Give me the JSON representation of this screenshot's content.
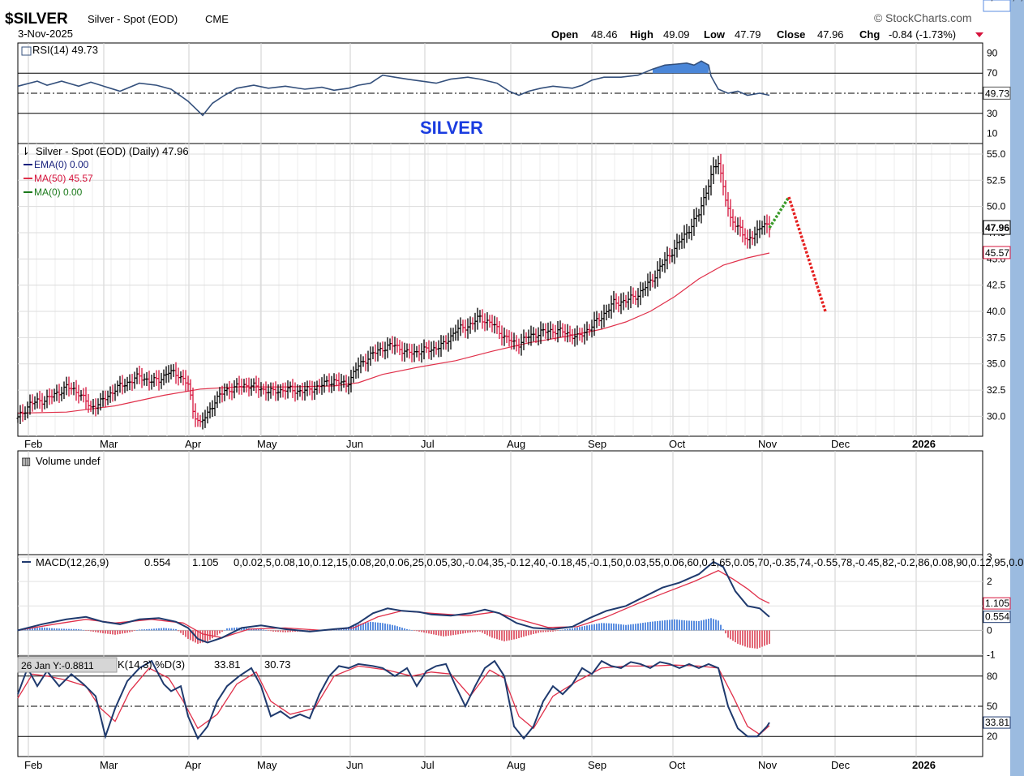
{
  "header": {
    "ticker": "$SILVER",
    "name": "Silver - Spot (EOD)",
    "exchange": "CME",
    "date": "3-Nov-2025",
    "brand": "StockCharts.com",
    "ohlc": {
      "open_label": "Open",
      "open": "48.46",
      "high_label": "High",
      "high": "49.09",
      "low_label": "Low",
      "low": "47.79",
      "close_label": "Close",
      "close": "47.96",
      "chg_label": "Chg",
      "chg": "-0.84 (-1.73%)"
    }
  },
  "overlay_title": "SILVER",
  "colors": {
    "price_up": "#000000",
    "price_down": "#d6133c",
    "ma50": "#e0304a",
    "ema": "#1a237e",
    "ma0": "#1b7a1b",
    "rsi_line": "#34507c",
    "rsi_fill": "#4a86d8",
    "macd_line": "#1f3a6e",
    "signal_line": "#e0304a",
    "hist_pos": "#5b8ee0",
    "hist_neg": "#e26877",
    "forecast_up": "#3a9a2a",
    "forecast_down": "#e52020",
    "panel_bg": "#ffffff",
    "grid": "#d8d8d8"
  },
  "months": [
    "Feb",
    "Mar",
    "Apr",
    "May",
    "Jun",
    "Jul",
    "Aug",
    "Sep",
    "Oct",
    "Nov",
    "Dec",
    "2026"
  ],
  "rsi": {
    "label": "RSI(14) 49.73",
    "value": "49.73",
    "ticks": [
      "90",
      "70",
      "30",
      "10"
    ],
    "levels": [
      70,
      50,
      30
    ],
    "points": [
      [
        0,
        57
      ],
      [
        8,
        62
      ],
      [
        12,
        58
      ],
      [
        18,
        62
      ],
      [
        25,
        57
      ],
      [
        30,
        61
      ],
      [
        38,
        55
      ],
      [
        42,
        52
      ],
      [
        50,
        60
      ],
      [
        57,
        58
      ],
      [
        63,
        54
      ],
      [
        70,
        42
      ],
      [
        73,
        35
      ],
      [
        76,
        28
      ],
      [
        80,
        40
      ],
      [
        85,
        48
      ],
      [
        90,
        55
      ],
      [
        97,
        58
      ],
      [
        103,
        55
      ],
      [
        110,
        57
      ],
      [
        118,
        54
      ],
      [
        125,
        56
      ],
      [
        130,
        53
      ],
      [
        136,
        55
      ],
      [
        140,
        58
      ],
      [
        145,
        60
      ],
      [
        150,
        68
      ],
      [
        155,
        66
      ],
      [
        160,
        64
      ],
      [
        166,
        62
      ],
      [
        172,
        60
      ],
      [
        178,
        64
      ],
      [
        185,
        66
      ],
      [
        190,
        64
      ],
      [
        197,
        60
      ],
      [
        202,
        52
      ],
      [
        206,
        48
      ],
      [
        210,
        52
      ],
      [
        215,
        55
      ],
      [
        220,
        57
      ],
      [
        228,
        55
      ],
      [
        232,
        58
      ],
      [
        236,
        63
      ],
      [
        241,
        66
      ],
      [
        248,
        66
      ],
      [
        255,
        68
      ],
      [
        261,
        74
      ],
      [
        266,
        78
      ],
      [
        271,
        79
      ],
      [
        275,
        80
      ],
      [
        278,
        78
      ],
      [
        281,
        82
      ],
      [
        284,
        78
      ],
      [
        285,
        67
      ],
      [
        288,
        54
      ],
      [
        292,
        50
      ],
      [
        296,
        52
      ],
      [
        300,
        48
      ],
      [
        305,
        50
      ],
      [
        309,
        48
      ]
    ],
    "ylim": [
      0,
      100
    ]
  },
  "price": {
    "label": "Silver - Spot (EOD) (Daily) 47.96",
    "ema_label": "EMA(0) 0.00",
    "ma50_label": "MA(50) 45.57",
    "ma0_label": "MA(0) 0.00",
    "last": "47.96",
    "ma50_last": "45.57",
    "ticks": [
      "55.0",
      "52.5",
      "50.0",
      "47.5",
      "45.0",
      "42.5",
      "40.0",
      "37.5",
      "35.0",
      "32.5",
      "30.0"
    ],
    "ylim": [
      28.1,
      56.0
    ],
    "closes": [
      [
        0,
        29.8
      ],
      [
        5,
        31.2
      ],
      [
        10,
        31.5
      ],
      [
        15,
        32.0
      ],
      [
        20,
        32.8
      ],
      [
        25,
        32.3
      ],
      [
        30,
        30.8
      ],
      [
        35,
        31.5
      ],
      [
        40,
        32.6
      ],
      [
        45,
        33.2
      ],
      [
        50,
        33.8
      ],
      [
        55,
        33.3
      ],
      [
        58,
        33.5
      ],
      [
        62,
        34.2
      ],
      [
        66,
        34.0
      ],
      [
        70,
        33.0
      ],
      [
        72,
        30.5
      ],
      [
        75,
        29.3
      ],
      [
        78,
        30.2
      ],
      [
        81,
        31.5
      ],
      [
        85,
        32.4
      ],
      [
        90,
        32.8
      ],
      [
        95,
        33.0
      ],
      [
        100,
        32.6
      ],
      [
        105,
        32.3
      ],
      [
        110,
        32.6
      ],
      [
        115,
        32.4
      ],
      [
        120,
        32.5
      ],
      [
        125,
        33.0
      ],
      [
        130,
        33.4
      ],
      [
        135,
        33.0
      ],
      [
        140,
        34.8
      ],
      [
        145,
        35.8
      ],
      [
        150,
        36.5
      ],
      [
        155,
        36.8
      ],
      [
        160,
        36.0
      ],
      [
        165,
        36.2
      ],
      [
        170,
        36.4
      ],
      [
        175,
        36.8
      ],
      [
        180,
        38.2
      ],
      [
        185,
        38.6
      ],
      [
        190,
        39.4
      ],
      [
        195,
        38.8
      ],
      [
        200,
        37.6
      ],
      [
        205,
        36.8
      ],
      [
        210,
        37.6
      ],
      [
        215,
        38.0
      ],
      [
        220,
        38.2
      ],
      [
        225,
        38.0
      ],
      [
        230,
        37.5
      ],
      [
        235,
        38.4
      ],
      [
        240,
        39.5
      ],
      [
        245,
        40.8
      ],
      [
        250,
        41.0
      ],
      [
        255,
        41.6
      ],
      [
        260,
        42.8
      ],
      [
        265,
        44.5
      ],
      [
        270,
        46.0
      ],
      [
        275,
        47.5
      ],
      [
        280,
        49.3
      ],
      [
        283,
        51.5
      ],
      [
        286,
        53.5
      ],
      [
        288,
        54.2
      ],
      [
        290,
        52.0
      ],
      [
        293,
        48.6
      ],
      [
        297,
        48.0
      ],
      [
        300,
        46.5
      ],
      [
        303,
        47.5
      ],
      [
        306,
        48.2
      ],
      [
        309,
        47.96
      ]
    ],
    "ma50": [
      [
        0,
        30.3
      ],
      [
        20,
        30.4
      ],
      [
        40,
        31.0
      ],
      [
        60,
        32.0
      ],
      [
        75,
        32.6
      ],
      [
        90,
        32.8
      ],
      [
        110,
        32.8
      ],
      [
        130,
        32.9
      ],
      [
        140,
        33.2
      ],
      [
        150,
        34.0
      ],
      [
        165,
        34.7
      ],
      [
        180,
        35.3
      ],
      [
        195,
        36.2
      ],
      [
        210,
        37.0
      ],
      [
        225,
        37.6
      ],
      [
        240,
        38.3
      ],
      [
        250,
        39.0
      ],
      [
        260,
        40.0
      ],
      [
        270,
        41.4
      ],
      [
        280,
        43.1
      ],
      [
        290,
        44.4
      ],
      [
        300,
        45.1
      ],
      [
        309,
        45.57
      ]
    ],
    "forecast_up": [
      [
        309,
        47.96
      ],
      [
        317,
        50.9
      ]
    ],
    "forecast_down": [
      [
        317,
        50.9
      ],
      [
        332,
        40.0
      ]
    ]
  },
  "volume": {
    "label": "Volume undef"
  },
  "macd": {
    "label_prefix": "MACD(12,26,9)",
    "macd": "0.554",
    "signal": "1.105",
    "hist": [
      [
        0,
        0.02
      ],
      [
        5,
        0.08
      ],
      [
        10,
        0.12
      ],
      [
        15,
        0.08
      ],
      [
        20,
        0.06
      ],
      [
        25,
        0.05
      ],
      [
        30,
        -0.04
      ],
      [
        35,
        -0.12
      ],
      [
        40,
        -0.18
      ],
      [
        45,
        -0.1
      ],
      [
        50,
        0.03
      ],
      [
        55,
        0.06
      ],
      [
        60,
        0.1
      ],
      [
        65,
        0.05
      ],
      [
        70,
        -0.35
      ],
      [
        74,
        -0.55
      ],
      [
        78,
        -0.45
      ],
      [
        82,
        -0.2
      ],
      [
        86,
        0.08
      ],
      [
        90,
        0.12
      ],
      [
        95,
        0.08
      ],
      [
        100,
        0.05
      ],
      [
        105,
        -0.05
      ],
      [
        110,
        -0.08
      ],
      [
        115,
        -0.05
      ],
      [
        120,
        -0.03
      ],
      [
        125,
        0.0
      ],
      [
        130,
        0.06
      ],
      [
        135,
        0.12
      ],
      [
        140,
        0.25
      ],
      [
        145,
        0.35
      ],
      [
        150,
        0.3
      ],
      [
        155,
        0.2
      ],
      [
        160,
        0.05
      ],
      [
        165,
        -0.05
      ],
      [
        170,
        -0.15
      ],
      [
        175,
        -0.25
      ],
      [
        180,
        -0.18
      ],
      [
        185,
        -0.1
      ],
      [
        190,
        -0.05
      ],
      [
        195,
        -0.3
      ],
      [
        200,
        -0.45
      ],
      [
        205,
        -0.35
      ],
      [
        210,
        -0.2
      ],
      [
        215,
        -0.08
      ],
      [
        220,
        -0.05
      ],
      [
        225,
        0.04
      ],
      [
        230,
        0.12
      ],
      [
        235,
        0.22
      ],
      [
        240,
        0.3
      ],
      [
        245,
        0.28
      ],
      [
        250,
        0.22
      ],
      [
        255,
        0.28
      ],
      [
        260,
        0.35
      ],
      [
        265,
        0.4
      ],
      [
        270,
        0.45
      ],
      [
        275,
        0.4
      ],
      [
        280,
        0.38
      ],
      [
        285,
        0.5
      ],
      [
        288,
        0.4
      ],
      [
        292,
        -0.3
      ],
      [
        296,
        -0.55
      ],
      [
        300,
        -0.7
      ],
      [
        304,
        -0.75
      ],
      [
        309,
        -0.552
      ]
    ],
    "ticks": [
      "3",
      "2",
      "1",
      "0",
      "-1"
    ],
    "ylim": [
      -1.05,
      3.1
    ],
    "macd_line": [
      [
        0,
        0.0
      ],
      [
        10,
        0.25
      ],
      [
        20,
        0.45
      ],
      [
        28,
        0.55
      ],
      [
        35,
        0.35
      ],
      [
        42,
        0.25
      ],
      [
        50,
        0.45
      ],
      [
        58,
        0.5
      ],
      [
        65,
        0.35
      ],
      [
        70,
        0.1
      ],
      [
        74,
        -0.35
      ],
      [
        78,
        -0.5
      ],
      [
        84,
        -0.3
      ],
      [
        92,
        0.1
      ],
      [
        100,
        0.2
      ],
      [
        110,
        0.05
      ],
      [
        120,
        -0.05
      ],
      [
        130,
        0.05
      ],
      [
        136,
        0.1
      ],
      [
        140,
        0.3
      ],
      [
        146,
        0.7
      ],
      [
        152,
        0.9
      ],
      [
        158,
        0.8
      ],
      [
        165,
        0.75
      ],
      [
        170,
        0.65
      ],
      [
        178,
        0.6
      ],
      [
        186,
        0.7
      ],
      [
        192,
        0.85
      ],
      [
        198,
        0.7
      ],
      [
        205,
        0.3
      ],
      [
        212,
        0.1
      ],
      [
        220,
        0.05
      ],
      [
        228,
        0.15
      ],
      [
        235,
        0.5
      ],
      [
        242,
        0.8
      ],
      [
        250,
        1.0
      ],
      [
        258,
        1.4
      ],
      [
        265,
        1.75
      ],
      [
        272,
        1.95
      ],
      [
        280,
        2.3
      ],
      [
        286,
        2.8
      ],
      [
        290,
        2.6
      ],
      [
        295,
        1.6
      ],
      [
        300,
        1.0
      ],
      [
        305,
        0.9
      ],
      [
        309,
        0.554
      ]
    ],
    "signal_line": [
      [
        0,
        0.0
      ],
      [
        15,
        0.25
      ],
      [
        28,
        0.45
      ],
      [
        40,
        0.3
      ],
      [
        55,
        0.45
      ],
      [
        68,
        0.3
      ],
      [
        76,
        -0.15
      ],
      [
        84,
        -0.3
      ],
      [
        95,
        0.05
      ],
      [
        110,
        0.1
      ],
      [
        125,
        0.0
      ],
      [
        138,
        0.1
      ],
      [
        148,
        0.55
      ],
      [
        158,
        0.8
      ],
      [
        170,
        0.7
      ],
      [
        185,
        0.6
      ],
      [
        196,
        0.75
      ],
      [
        206,
        0.45
      ],
      [
        218,
        0.12
      ],
      [
        230,
        0.15
      ],
      [
        242,
        0.55
      ],
      [
        255,
        1.1
      ],
      [
        265,
        1.5
      ],
      [
        278,
        2.0
      ],
      [
        288,
        2.45
      ],
      [
        294,
        2.1
      ],
      [
        300,
        1.7
      ],
      [
        305,
        1.3
      ],
      [
        309,
        1.105
      ]
    ]
  },
  "stoch": {
    "tooltip": "26 Jan Y:-0.8811",
    "label_suffix": "K(14,3) %D(3)",
    "k": "33.81",
    "d": "30.73",
    "ticks": [
      "80",
      "50",
      "20"
    ],
    "levels": [
      80,
      50,
      20
    ],
    "ylim": [
      0,
      100
    ],
    "k_line": [
      [
        0,
        62
      ],
      [
        4,
        88
      ],
      [
        8,
        70
      ],
      [
        12,
        85
      ],
      [
        17,
        70
      ],
      [
        22,
        82
      ],
      [
        27,
        72
      ],
      [
        32,
        60
      ],
      [
        36,
        20
      ],
      [
        40,
        48
      ],
      [
        45,
        75
      ],
      [
        50,
        88
      ],
      [
        55,
        95
      ],
      [
        60,
        72
      ],
      [
        63,
        65
      ],
      [
        67,
        70
      ],
      [
        70,
        40
      ],
      [
        74,
        18
      ],
      [
        78,
        30
      ],
      [
        82,
        55
      ],
      [
        86,
        70
      ],
      [
        91,
        80
      ],
      [
        96,
        88
      ],
      [
        100,
        70
      ],
      [
        104,
        40
      ],
      [
        108,
        45
      ],
      [
        112,
        38
      ],
      [
        116,
        42
      ],
      [
        120,
        38
      ],
      [
        124,
        62
      ],
      [
        128,
        80
      ],
      [
        132,
        90
      ],
      [
        136,
        88
      ],
      [
        140,
        92
      ],
      [
        146,
        90
      ],
      [
        150,
        88
      ],
      [
        155,
        80
      ],
      [
        160,
        88
      ],
      [
        164,
        70
      ],
      [
        168,
        85
      ],
      [
        172,
        90
      ],
      [
        176,
        92
      ],
      [
        180,
        70
      ],
      [
        184,
        50
      ],
      [
        188,
        70
      ],
      [
        192,
        88
      ],
      [
        196,
        95
      ],
      [
        200,
        80
      ],
      [
        204,
        30
      ],
      [
        208,
        18
      ],
      [
        212,
        30
      ],
      [
        216,
        55
      ],
      [
        220,
        70
      ],
      [
        224,
        62
      ],
      [
        228,
        72
      ],
      [
        232,
        88
      ],
      [
        236,
        82
      ],
      [
        240,
        95
      ],
      [
        244,
        90
      ],
      [
        248,
        88
      ],
      [
        252,
        94
      ],
      [
        256,
        92
      ],
      [
        260,
        88
      ],
      [
        264,
        94
      ],
      [
        268,
        92
      ],
      [
        272,
        88
      ],
      [
        276,
        92
      ],
      [
        280,
        88
      ],
      [
        284,
        92
      ],
      [
        288,
        88
      ],
      [
        292,
        50
      ],
      [
        296,
        28
      ],
      [
        300,
        20
      ],
      [
        304,
        20
      ],
      [
        308,
        30
      ],
      [
        309,
        33.81
      ]
    ],
    "d_line": [
      [
        0,
        58
      ],
      [
        6,
        82
      ],
      [
        12,
        80
      ],
      [
        20,
        76
      ],
      [
        28,
        70
      ],
      [
        34,
        48
      ],
      [
        40,
        35
      ],
      [
        46,
        65
      ],
      [
        54,
        88
      ],
      [
        62,
        78
      ],
      [
        68,
        55
      ],
      [
        74,
        28
      ],
      [
        82,
        42
      ],
      [
        90,
        72
      ],
      [
        98,
        84
      ],
      [
        104,
        55
      ],
      [
        112,
        42
      ],
      [
        122,
        48
      ],
      [
        130,
        80
      ],
      [
        140,
        90
      ],
      [
        152,
        86
      ],
      [
        162,
        80
      ],
      [
        170,
        84
      ],
      [
        178,
        82
      ],
      [
        186,
        60
      ],
      [
        194,
        86
      ],
      [
        200,
        78
      ],
      [
        206,
        40
      ],
      [
        212,
        28
      ],
      [
        220,
        60
      ],
      [
        230,
        75
      ],
      [
        240,
        88
      ],
      [
        250,
        90
      ],
      [
        260,
        90
      ],
      [
        270,
        91
      ],
      [
        280,
        90
      ],
      [
        288,
        88
      ],
      [
        294,
        60
      ],
      [
        300,
        30
      ],
      [
        305,
        22
      ],
      [
        309,
        30.73
      ]
    ]
  }
}
